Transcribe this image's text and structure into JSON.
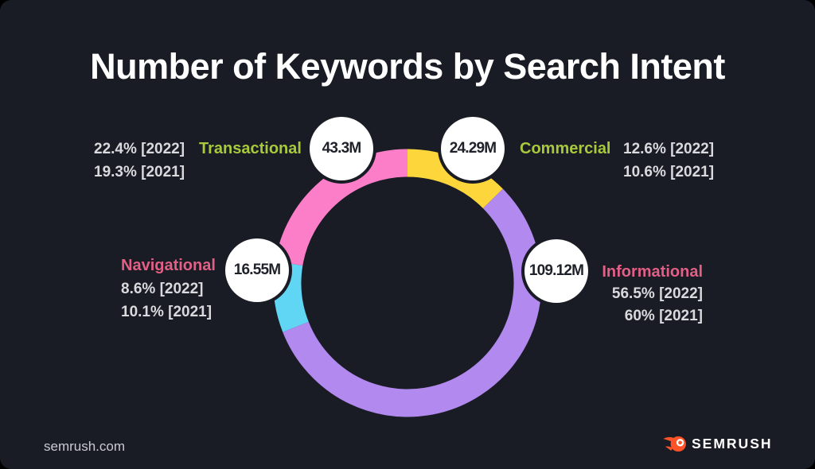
{
  "header": {
    "title": "Number of Keywords by Search Intent"
  },
  "chart_data": {
    "type": "pie",
    "variant": "donut-ring",
    "title": "Number of Keywords by Search Intent",
    "legend_position": "callouts-around-ring",
    "order_clockwise_from_top": [
      "Commercial",
      "Informational",
      "Navigational",
      "Transactional"
    ],
    "segments": [
      {
        "label": "Commercial",
        "value_label": "24.29M",
        "keywords_millions": 24.29,
        "pct_2022": 12.6,
        "pct_2021": 10.6,
        "color": "#fdd63c"
      },
      {
        "label": "Informational",
        "value_label": "109.12M",
        "keywords_millions": 109.12,
        "pct_2022": 56.5,
        "pct_2021": 60,
        "color": "#b289ef"
      },
      {
        "label": "Navigational",
        "value_label": "16.55M",
        "keywords_millions": 16.55,
        "pct_2022": 8.6,
        "pct_2021": 10.1,
        "color": "#61d5f4"
      },
      {
        "label": "Transactional",
        "value_label": "43.3M",
        "keywords_millions": 43.3,
        "pct_2022": 22.4,
        "pct_2021": 19.3,
        "color": "#fc7ec8"
      }
    ]
  },
  "callouts": {
    "transactional": {
      "label": "Transactional",
      "label_color": "#a9c93c",
      "bubble": "43.3M",
      "pct_lines": [
        "22.4% [2022]",
        "19.3% [2021]"
      ]
    },
    "commercial": {
      "label": "Commercial",
      "label_color": "#a9c93c",
      "bubble": "24.29M",
      "pct_lines": [
        "12.6% [2022]",
        "10.6% [2021]"
      ]
    },
    "navigational": {
      "label": "Navigational",
      "label_color": "#e25f85",
      "bubble": "16.55M",
      "pct_lines": [
        "8.6% [2022]",
        "10.1% [2021]"
      ]
    },
    "informational": {
      "label": "Informational",
      "label_color": "#e25f85",
      "bubble": "109.12M",
      "pct_lines": [
        "56.5% [2022]",
        "60% [2021]"
      ]
    }
  },
  "footer": {
    "site": "semrush.com",
    "brand": "SEMRUSH"
  },
  "colors": {
    "background": "#191c24",
    "title_text": "#ffffff",
    "percent_text": "#d9dade",
    "bubble_bg": "#ffffff",
    "bubble_text": "#1e2129",
    "label_lime": "#a9c93c",
    "label_rose": "#e25f85",
    "logo_orange": "#ff5226"
  },
  "icons": {
    "brand_icon": "semrush-flame-icon"
  }
}
